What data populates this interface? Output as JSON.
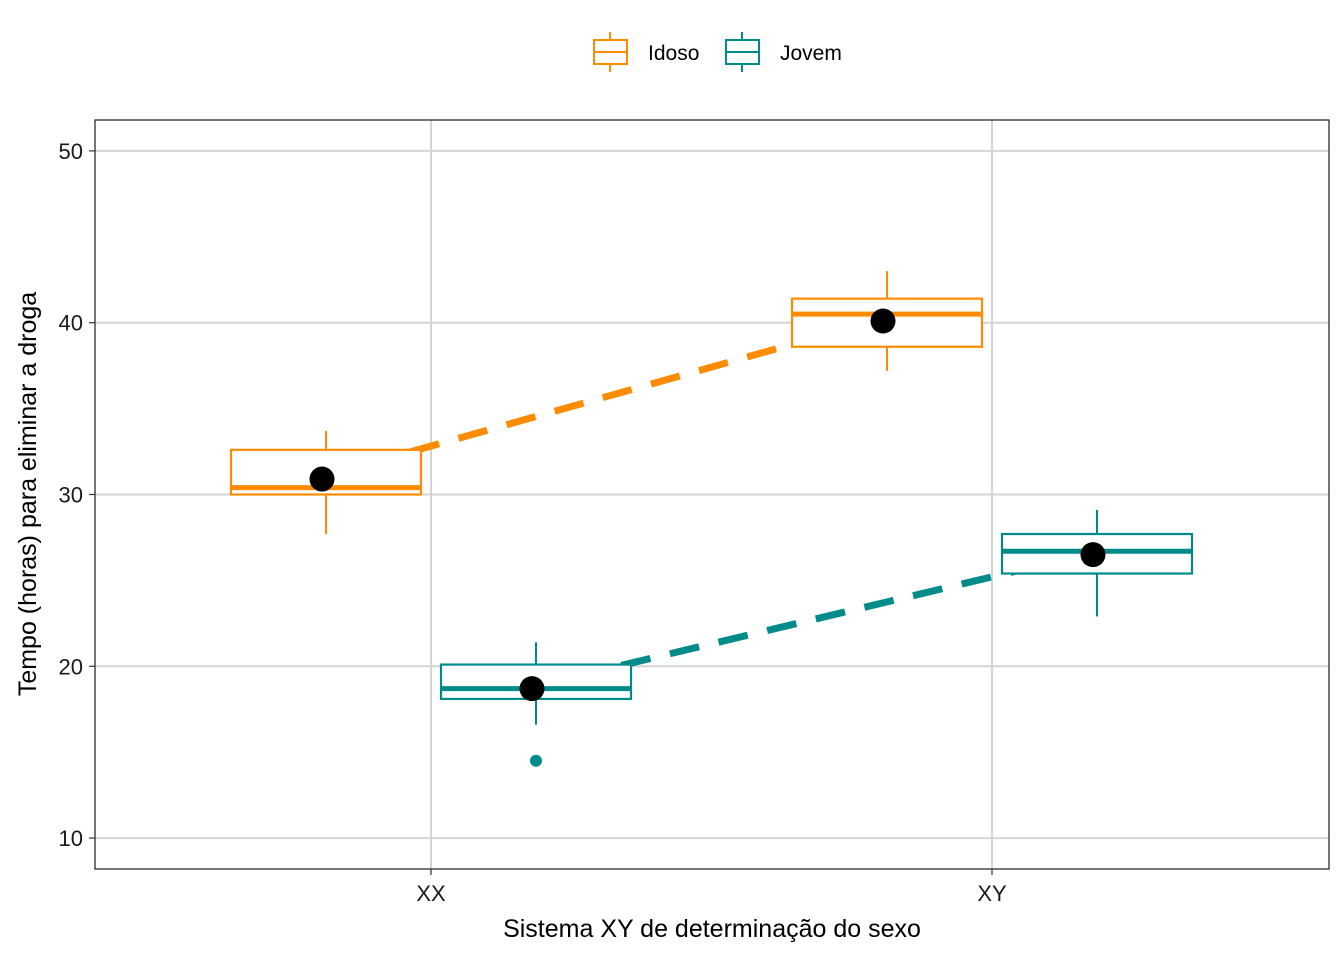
{
  "chart_data": {
    "type": "boxplot",
    "xlabel": "Sistema XY de determinação do sexo",
    "ylabel": "Tempo (horas) para eliminar a droga",
    "categories": [
      "XX",
      "XY"
    ],
    "ylim": [
      8.2,
      51.8
    ],
    "yticks": [
      10,
      20,
      30,
      40,
      50
    ],
    "grid": true,
    "legend_position": "top",
    "series": [
      {
        "name": "Idoso",
        "color": "#FF8C00",
        "boxes": [
          {
            "category": "XX",
            "whisker_low": 27.7,
            "q1": 30.0,
            "median": 30.4,
            "q3": 32.6,
            "whisker_high": 33.7,
            "mean": 30.9,
            "outliers": []
          },
          {
            "category": "XY",
            "whisker_low": 37.2,
            "q1": 38.6,
            "median": 40.5,
            "q3": 41.4,
            "whisker_high": 43.0,
            "mean": 40.1,
            "outliers": []
          }
        ]
      },
      {
        "name": "Jovem",
        "color": "#008B8B",
        "boxes": [
          {
            "category": "XX",
            "whisker_low": 16.6,
            "q1": 18.1,
            "median": 18.7,
            "q3": 20.1,
            "whisker_high": 21.4,
            "mean": 18.7,
            "outliers": [
              14.5
            ]
          },
          {
            "category": "XY",
            "whisker_low": 22.9,
            "q1": 25.4,
            "median": 26.7,
            "q3": 27.7,
            "whisker_high": 29.1,
            "mean": 26.5,
            "outliers": []
          }
        ]
      }
    ]
  }
}
